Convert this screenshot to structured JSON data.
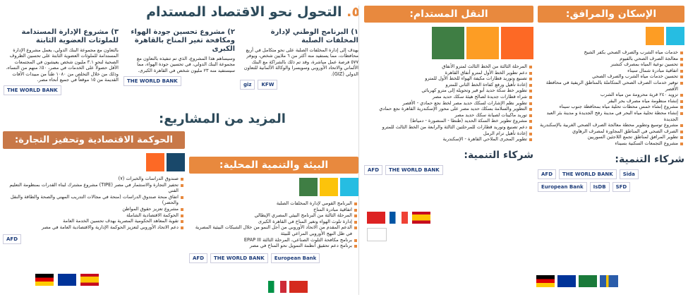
{
  "title": {
    "number": "٥.",
    "text": "التحول نحو الاقتصاد المستدام"
  },
  "sectors": [
    {
      "header": "الإسكان والمرافق:",
      "items": [
        "خدمات مياه الشرب والصرف الصحي بكفر الشيخ",
        "معالجة الصرف الصحي بالفيوم",
        "تحسين نوعية المياه بمصرف كتشنر",
        "اتفاقية مبادرة شمال سيناء",
        "تحسين خدمات مياه الشرب والصرف الصحي",
        "توفير خدمات الصرف الصحي المتكاملة بالمناطق الريفية في محافظة الأقصر",
        "تزويد ٢٤٠ قرية محرومة من مياه الشرب",
        "إنشاء منظومة مياه مصرف بحر البقر",
        "مشروع إنشاء خمس محطات تحلية مياه بمحافظة جنوب سيناء",
        "إنشاء محطة تحلية مياه البحر في مدينة رفح الجديدة و مدينة بئر العبد الجديدة",
        "مشروع توسيع وتطوير محطة معالجة الصرف الصحي الغربية بالإسكندرية",
        "الصرف الصحي في المناطق المجاورة لمصرف الرهاوي",
        "تطوير المرافق لمناطق تجمع اللاجئين السوريين",
        "مشروع التجمعات السكنية بسيناء"
      ],
      "partners_title": "شركاء التنمية:",
      "partners": [
        "AFD",
        "THE WORLD BANK",
        "Sida",
        "European Bank",
        "IsDB",
        "SFD"
      ]
    },
    {
      "header": "النقل المستدام:",
      "items": [
        "المرحلة الثالثة من الخط الثالث لمترو الأنفاق",
        "دعم تطوير الخط الأول لمترو أنفاق القاهرة",
        "تصنيع وتوريد قطارات مكيفة الهواء للخط الأول للمترو",
        "إعادة تأهيل ورفع كفاءة الخط الثاني للمترو",
        "تطوير خط سكة حديد أبو قير وتحويله إلى مترو كهربائي",
        "شراء قطارات جديدة لصالح هيئة سكك حديد مصر",
        "تطوير نظم الإشارات لسكك حديد مصر لخط نجع حمادي - الأقصر",
        "التطوير والسلامة بسكك حديد مصر على محور الإسكندرية القاهرة نجع حمادي",
        "توريد ماكينات لصيانة سكك حديد مصر",
        "مشروع تطوير خط السكة الحديد (طنطا - المنصورة - دمياط)",
        "دعم تصنيع وتوريد قطارات للمرحلتين الثالثة والرابعة من الخط الثالث للمترو",
        "إعادة تأهيل ترام الرمل",
        "تطوير المجرى الملاحي القاهرة - الإسكندرية"
      ],
      "partners_title": "شركاء التنمية:",
      "partners": [
        "AFD",
        "THE WORLD BANK"
      ]
    },
    {
      "header": "البيئة والتنمية المحلية:",
      "items": [
        "البرنامج القومي لإدارة المخلفات الصلبة",
        "اتفاقية مبادرة المناخ",
        "المرحلة الثالثة من البرنامج البيئي المصري الإيطالي",
        "إدارة تلوث الهواء وتغير المناخ في القاهرة الكبرى",
        "الدعم المقدم من الاتحاد الأوروبي من أجل النمو من خلال الشبكات البيئية المصرية في ظل النهج الأوروبي المراعي للبيئة",
        "برنامج مكافحة التلوث الصناعي، المرحلة الثالثة EPAP III",
        "برنامج دعم تحقيق أنظمة التمويل نحو المناخ في مصر"
      ],
      "partners": [
        "AFD",
        "THE WORLD BANK",
        "European Bank"
      ]
    },
    {
      "header": "الحوكمة الاقتصادية وتحفيز التجارة:",
      "items": [
        "صندوق الدراسات والخبرات (٧)",
        "تحفيز التجارة والاستثمار في مصر (TIPE) مشروع مشترك لبناء القدرات بمنظومة التعليم الفني",
        "اتفاق منحة صندوق الدراسات (منحة في مجالات التدريب المهني والصحة والطاقة والنقل والحضر)",
        "مشروع تعزيز حقوق المواطن",
        "الحوكمة الاقتصادية الشاملة",
        "تقوية المعاهد الحكومية المصرية بهدف تحسين الخدمة العامة",
        "دعم الاتحاد الأوروبي لتعزيز الحوكمة الإدارية والاقتصادية العامة في مصر"
      ],
      "partners": [
        "AFD"
      ]
    }
  ],
  "projects": [
    {
      "title": "١) البرنامج الوطني لإدارة المخلفات الصلبة",
      "text": "يهدف إلى إدارة المخلفات الصلبة على نحو متكامل في أربع محافظات، مما يستفيد منه أكثر من ٦ ملايين شخص، ويوفر ٥٧٧ فرصة عمل مباشرة، وقد تم ذلك بالشراكة مع البنك الألماني والاتحاد الأوروبي وسويسرا والوكالة الألمانية للتعاون الدولي (GIZ).",
      "partners": [
        "giz",
        "KFW"
      ]
    },
    {
      "title": "٢) مشروع تحسين جودة الهواء ومكافحة تغير المناخ بالقاهرة الكبرى",
      "text": "وسيساهم هذا المشروع، الذي تم تنفيذه بالتعاون مع مجموعة البنك الدولي، في تحسين جودة الهواء، مما سيستفيد منه ٢٣ مليون شخص في القاهرة الكبرى.",
      "partners": [
        "THE WORLD BANK"
      ]
    },
    {
      "title": "٣) مشروع الإدارة المستدامة للملوثات العضوية الثابتة",
      "text": "بالتعاون مع مجموعة البنك الدولي، يعمل مشروع الإدارة المستدامة للملوثات العضوية الثابتة على تحسين الظروف الصحية لنحو ٣.١ مليون شخص يعيشون في المجتمعات الأقل حصولاً على الخدمات في مصر، ٥٠٪ منهم من النساء، وذلك من خلال التخلص من ١٠٨٠ طناً من مبيدات الآفات القديمة من ١٥ موقعاً في جميع أنحاء مصر.",
      "partners": [
        "THE WORLD BANK"
      ]
    }
  ],
  "more_projects": "المزيد من المشاريع:"
}
